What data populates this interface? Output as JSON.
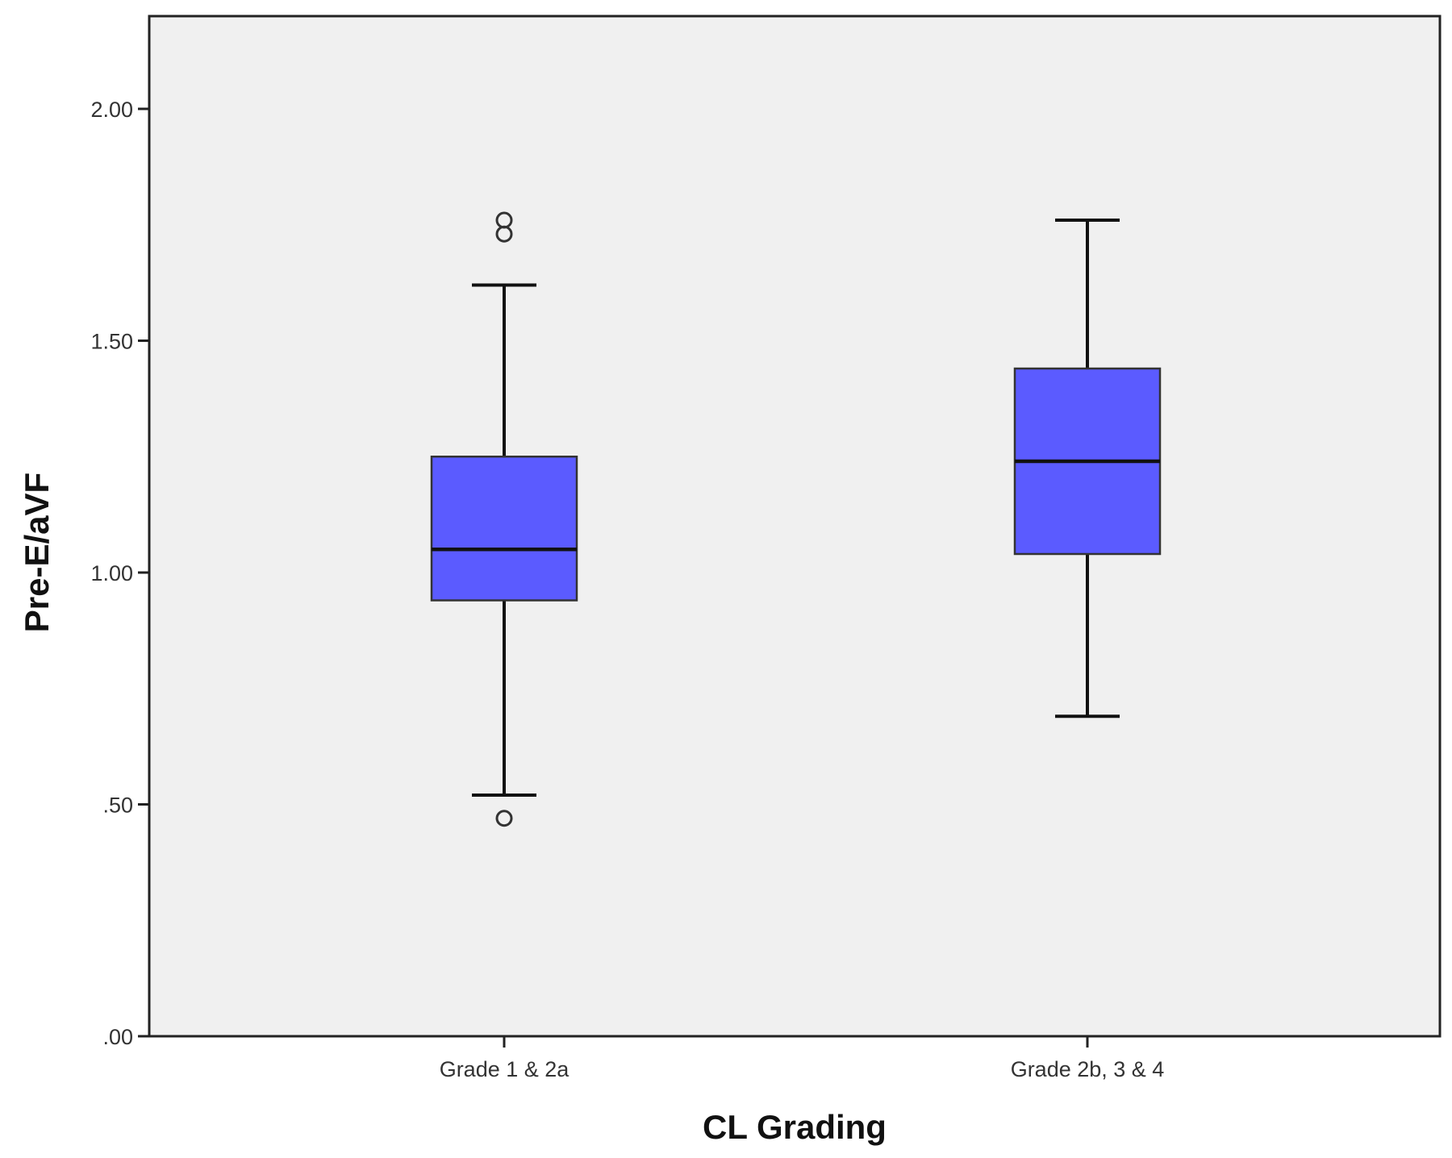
{
  "chart_data": {
    "type": "box",
    "title": "",
    "xlabel": "CL Grading",
    "ylabel": "Pre-E/aVF",
    "ylim": [
      0,
      2.2
    ],
    "y_ticks": [
      {
        "value": 0,
        "label": ".00"
      },
      {
        "value": 0.5,
        "label": ".50"
      },
      {
        "value": 1.0,
        "label": "1.00"
      },
      {
        "value": 1.5,
        "label": "1.50"
      },
      {
        "value": 2.0,
        "label": "2.00"
      }
    ],
    "grid": false,
    "legend": "none",
    "colors": {
      "box_fill": "#5b5bff",
      "plot_background": "#f0f0f0",
      "stroke": "#111111"
    },
    "categories": [
      "Grade 1 & 2a",
      "Grade 2b, 3 & 4"
    ],
    "boxes": [
      {
        "category": "Grade 1 & 2a",
        "whisker_low": 0.52,
        "q1": 0.94,
        "median": 1.05,
        "q3": 1.25,
        "whisker_high": 1.62,
        "outliers": [
          1.76,
          1.73,
          0.47
        ]
      },
      {
        "category": "Grade 2b, 3 & 4",
        "whisker_low": 0.69,
        "q1": 1.04,
        "median": 1.24,
        "q3": 1.44,
        "whisker_high": 1.76,
        "outliers": []
      }
    ]
  }
}
